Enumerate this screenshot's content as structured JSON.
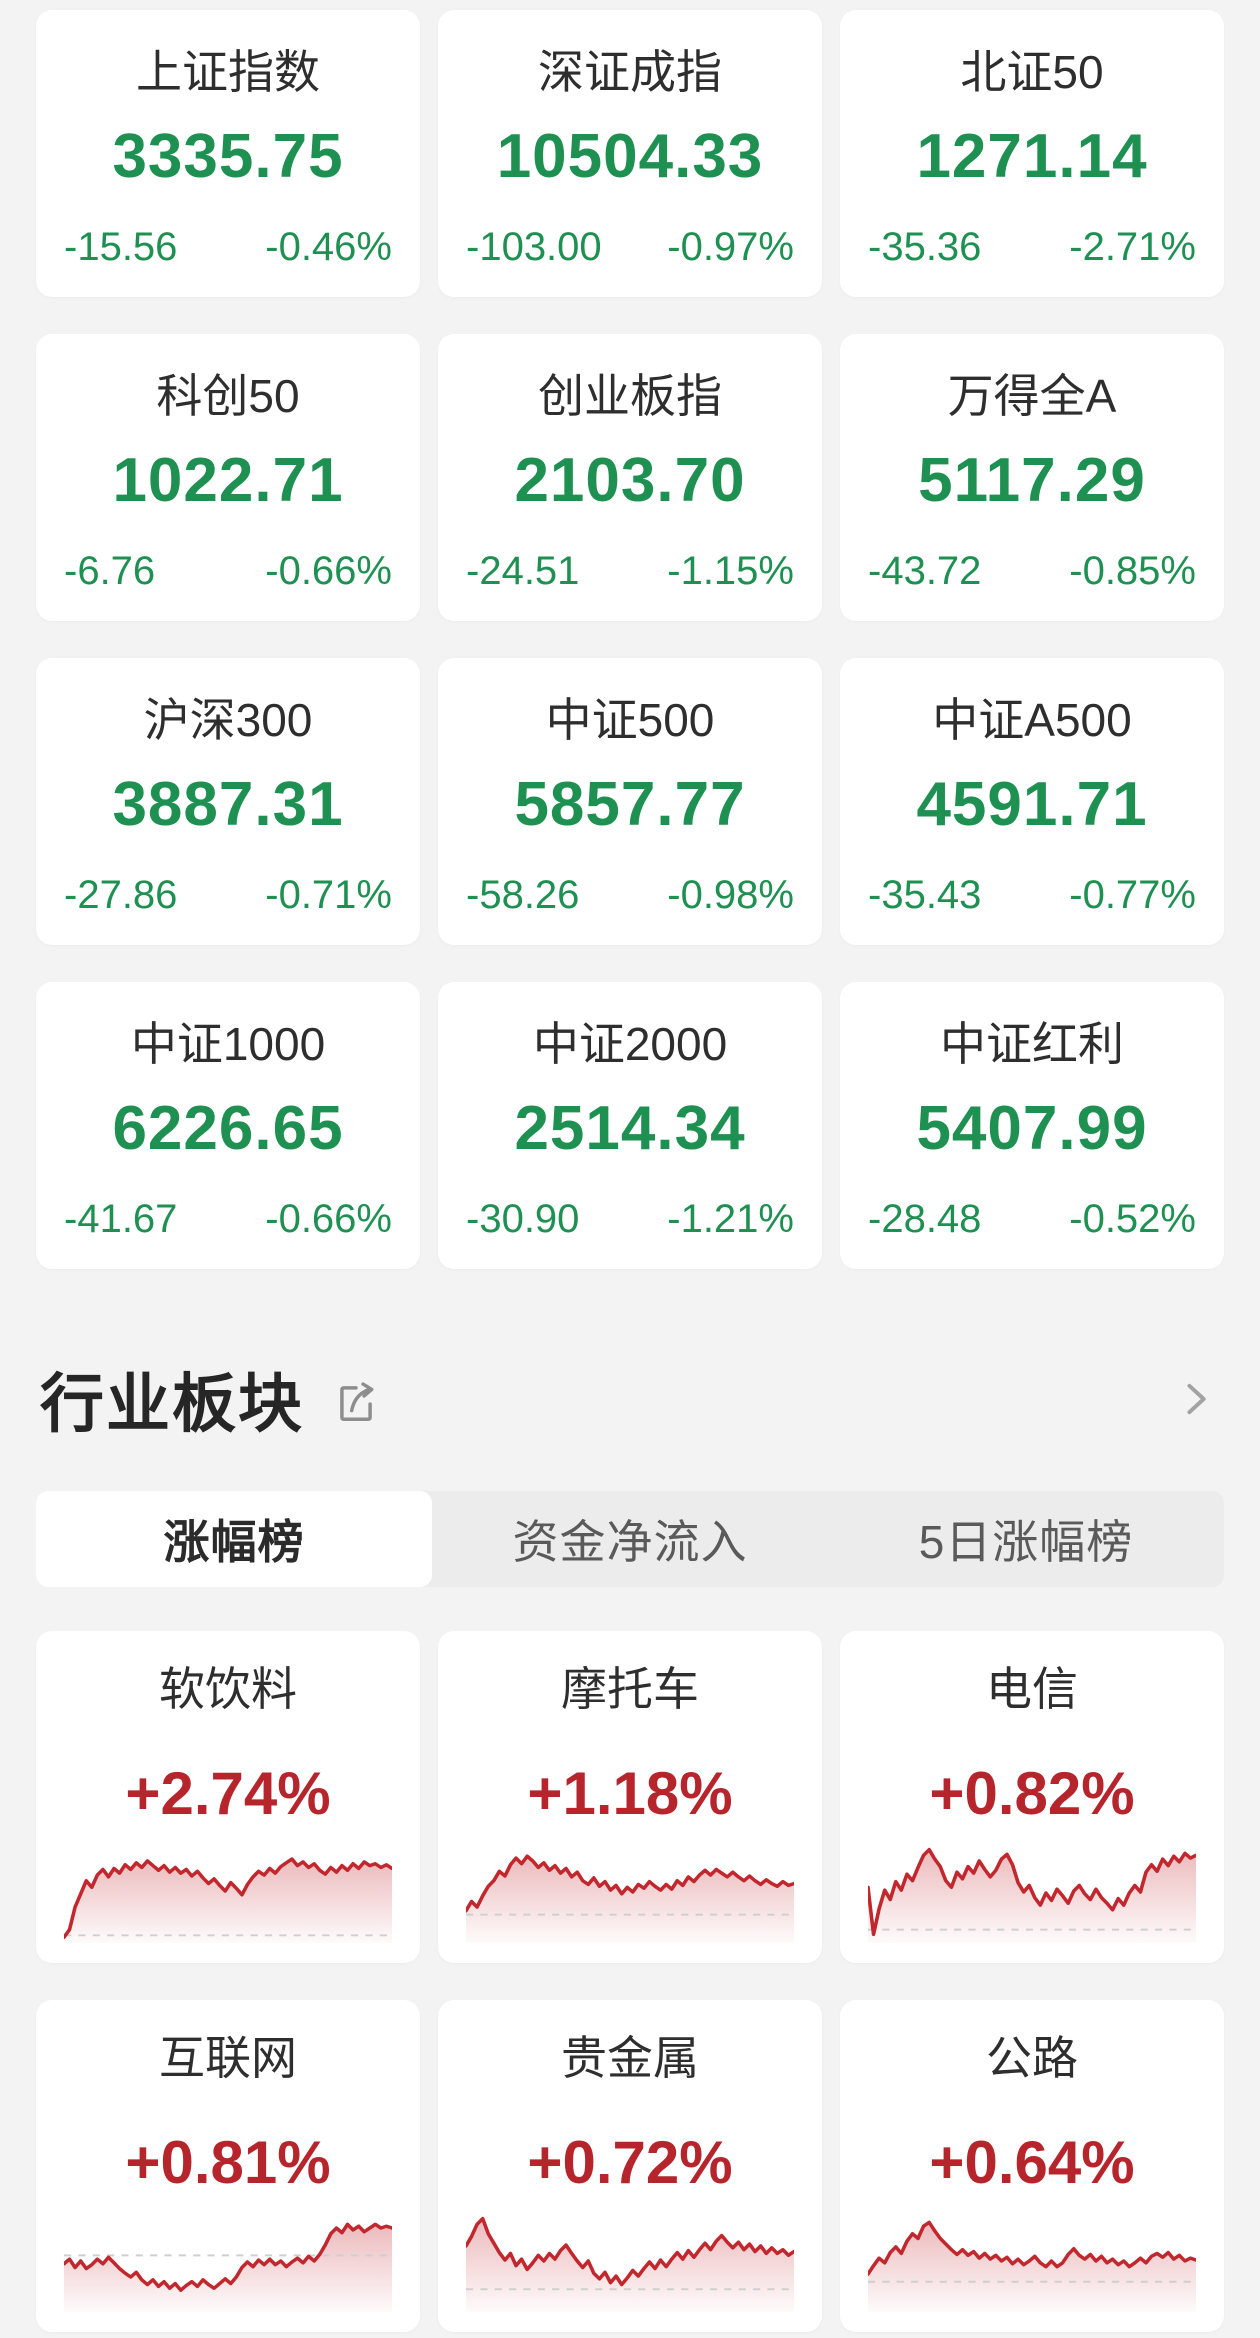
{
  "theme": {
    "green": "#1e9051",
    "red": "#b6242c",
    "spark_line": "#c2272e",
    "page_bg": "#f3f3f4",
    "card_bg": "#ffffff",
    "dark_text": "#2e2e2e",
    "tab_bg": "#ececec",
    "tab_inactive_text": "#5a5a5a",
    "icon_gray": "#8d8d8d",
    "dash_gray": "#cfcfcf"
  },
  "indices": [
    {
      "name": "上证指数",
      "value": "3335.75",
      "change": "-15.56",
      "pct": "-0.46%"
    },
    {
      "name": "深证成指",
      "value": "10504.33",
      "change": "-103.00",
      "pct": "-0.97%"
    },
    {
      "name": "北证50",
      "value": "1271.14",
      "change": "-35.36",
      "pct": "-2.71%"
    },
    {
      "name": "科创50",
      "value": "1022.71",
      "change": "-6.76",
      "pct": "-0.66%"
    },
    {
      "name": "创业板指",
      "value": "2103.70",
      "change": "-24.51",
      "pct": "-1.15%"
    },
    {
      "name": "万得全A",
      "value": "5117.29",
      "change": "-43.72",
      "pct": "-0.85%"
    },
    {
      "name": "沪深300",
      "value": "3887.31",
      "change": "-27.86",
      "pct": "-0.71%"
    },
    {
      "name": "中证500",
      "value": "5857.77",
      "change": "-58.26",
      "pct": "-0.98%"
    },
    {
      "name": "中证A500",
      "value": "4591.71",
      "change": "-35.43",
      "pct": "-0.77%"
    },
    {
      "name": "中证1000",
      "value": "6226.65",
      "change": "-41.67",
      "pct": "-0.66%"
    },
    {
      "name": "中证2000",
      "value": "2514.34",
      "change": "-30.90",
      "pct": "-1.21%"
    },
    {
      "name": "中证红利",
      "value": "5407.99",
      "change": "-28.48",
      "pct": "-0.52%"
    }
  ],
  "section": {
    "title": "行业板块",
    "icons": {
      "share": "share-icon",
      "chevron": "chevron-right-icon"
    },
    "tabs": [
      {
        "id": "gainers",
        "label": "涨幅榜",
        "active": true
      },
      {
        "id": "net-inflow",
        "label": "资金净流入",
        "active": false
      },
      {
        "id": "5day-gainers",
        "label": "5日涨幅榜",
        "active": false
      }
    ]
  },
  "sectors": [
    {
      "name": "软饮料",
      "pct": "+2.74%"
    },
    {
      "name": "摩托车",
      "pct": "+1.18%"
    },
    {
      "name": "电信",
      "pct": "+0.82%"
    },
    {
      "name": "互联网",
      "pct": "+0.81%"
    },
    {
      "name": "贵金属",
      "pct": "+0.72%"
    },
    {
      "name": "公路",
      "pct": "+0.64%"
    }
  ],
  "chart_data": [
    {
      "type": "line",
      "title": "软饮料",
      "change_pct": "+2.74%",
      "normalized": true,
      "ylim": [
        0,
        1
      ],
      "baseline": 0.04,
      "values": [
        0.02,
        0.1,
        0.34,
        0.48,
        0.62,
        0.55,
        0.68,
        0.74,
        0.66,
        0.75,
        0.7,
        0.79,
        0.74,
        0.81,
        0.76,
        0.83,
        0.78,
        0.73,
        0.78,
        0.71,
        0.76,
        0.7,
        0.74,
        0.67,
        0.72,
        0.65,
        0.59,
        0.64,
        0.57,
        0.51,
        0.6,
        0.54,
        0.47,
        0.58,
        0.66,
        0.72,
        0.68,
        0.75,
        0.7,
        0.77,
        0.81,
        0.85,
        0.78,
        0.82,
        0.76,
        0.8,
        0.73,
        0.69,
        0.76,
        0.71,
        0.78,
        0.73,
        0.8,
        0.75,
        0.82,
        0.78,
        0.8,
        0.76,
        0.79,
        0.75
      ]
    },
    {
      "type": "line",
      "title": "摩托车",
      "change_pct": "+1.18%",
      "normalized": true,
      "ylim": [
        0,
        1
      ],
      "baseline": 0.26,
      "values": [
        0.3,
        0.4,
        0.34,
        0.46,
        0.56,
        0.62,
        0.72,
        0.67,
        0.79,
        0.86,
        0.8,
        0.88,
        0.83,
        0.76,
        0.81,
        0.73,
        0.78,
        0.7,
        0.75,
        0.66,
        0.71,
        0.62,
        0.58,
        0.65,
        0.56,
        0.61,
        0.52,
        0.57,
        0.48,
        0.55,
        0.5,
        0.58,
        0.54,
        0.61,
        0.56,
        0.52,
        0.58,
        0.53,
        0.62,
        0.57,
        0.66,
        0.61,
        0.68,
        0.73,
        0.68,
        0.74,
        0.7,
        0.66,
        0.71,
        0.66,
        0.62,
        0.67,
        0.62,
        0.58,
        0.63,
        0.59,
        0.56,
        0.61,
        0.57,
        0.59
      ]
    },
    {
      "type": "line",
      "title": "电信",
      "change_pct": "+0.82%",
      "normalized": true,
      "ylim": [
        0,
        1
      ],
      "baseline": 0.1,
      "values": [
        0.55,
        0.05,
        0.32,
        0.52,
        0.42,
        0.61,
        0.52,
        0.69,
        0.62,
        0.76,
        0.89,
        0.95,
        0.85,
        0.77,
        0.62,
        0.55,
        0.71,
        0.64,
        0.77,
        0.7,
        0.83,
        0.74,
        0.66,
        0.73,
        0.85,
        0.9,
        0.79,
        0.6,
        0.5,
        0.57,
        0.44,
        0.36,
        0.49,
        0.41,
        0.53,
        0.46,
        0.38,
        0.51,
        0.57,
        0.48,
        0.42,
        0.53,
        0.44,
        0.38,
        0.31,
        0.43,
        0.36,
        0.49,
        0.57,
        0.5,
        0.71,
        0.79,
        0.72,
        0.85,
        0.78,
        0.88,
        0.82,
        0.91,
        0.86,
        0.89
      ]
    },
    {
      "type": "line",
      "title": "互联网",
      "change_pct": "+0.81%",
      "normalized": true,
      "ylim": [
        0,
        1
      ],
      "baseline": 0.56,
      "values": [
        0.47,
        0.52,
        0.43,
        0.5,
        0.42,
        0.46,
        0.52,
        0.47,
        0.54,
        0.48,
        0.42,
        0.37,
        0.33,
        0.38,
        0.3,
        0.25,
        0.3,
        0.23,
        0.28,
        0.21,
        0.26,
        0.19,
        0.24,
        0.28,
        0.23,
        0.3,
        0.25,
        0.21,
        0.26,
        0.31,
        0.26,
        0.33,
        0.43,
        0.49,
        0.44,
        0.51,
        0.46,
        0.52,
        0.46,
        0.5,
        0.44,
        0.49,
        0.53,
        0.48,
        0.55,
        0.5,
        0.57,
        0.67,
        0.79,
        0.85,
        0.8,
        0.89,
        0.83,
        0.87,
        0.81,
        0.85,
        0.89,
        0.85,
        0.87,
        0.85
      ]
    },
    {
      "type": "line",
      "title": "贵金属",
      "change_pct": "+0.72%",
      "normalized": true,
      "ylim": [
        0,
        1
      ],
      "baseline": 0.2,
      "values": [
        0.66,
        0.76,
        0.89,
        0.95,
        0.79,
        0.69,
        0.59,
        0.51,
        0.58,
        0.45,
        0.52,
        0.41,
        0.48,
        0.56,
        0.5,
        0.58,
        0.52,
        0.61,
        0.67,
        0.58,
        0.5,
        0.43,
        0.5,
        0.37,
        0.31,
        0.38,
        0.27,
        0.34,
        0.25,
        0.32,
        0.4,
        0.34,
        0.42,
        0.49,
        0.42,
        0.51,
        0.44,
        0.52,
        0.59,
        0.52,
        0.61,
        0.54,
        0.62,
        0.69,
        0.62,
        0.71,
        0.77,
        0.7,
        0.64,
        0.7,
        0.62,
        0.68,
        0.6,
        0.66,
        0.58,
        0.64,
        0.58,
        0.62,
        0.56,
        0.6
      ]
    },
    {
      "type": "line",
      "title": "公路",
      "change_pct": "+0.64%",
      "normalized": true,
      "ylim": [
        0,
        1
      ],
      "baseline": 0.28,
      "values": [
        0.36,
        0.45,
        0.53,
        0.48,
        0.59,
        0.65,
        0.58,
        0.71,
        0.79,
        0.74,
        0.87,
        0.91,
        0.82,
        0.74,
        0.68,
        0.62,
        0.57,
        0.62,
        0.56,
        0.6,
        0.53,
        0.58,
        0.52,
        0.56,
        0.5,
        0.54,
        0.47,
        0.52,
        0.46,
        0.5,
        0.55,
        0.48,
        0.44,
        0.5,
        0.44,
        0.48,
        0.57,
        0.63,
        0.56,
        0.52,
        0.57,
        0.5,
        0.55,
        0.48,
        0.52,
        0.46,
        0.5,
        0.44,
        0.48,
        0.53,
        0.48,
        0.55,
        0.58,
        0.54,
        0.59,
        0.52,
        0.56,
        0.5,
        0.53,
        0.51
      ]
    }
  ]
}
